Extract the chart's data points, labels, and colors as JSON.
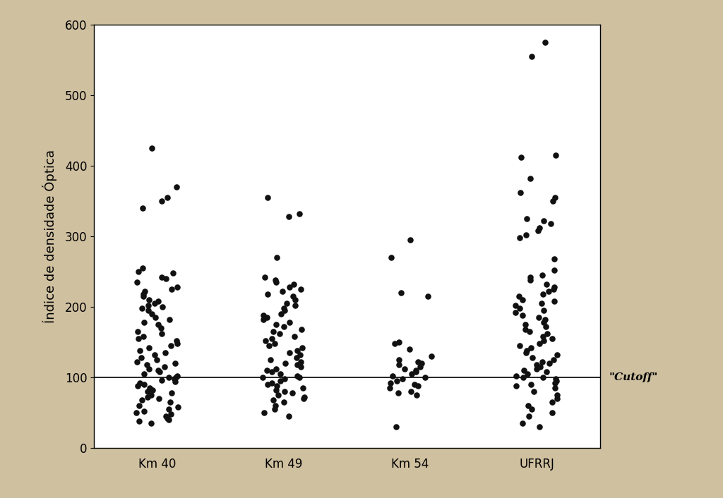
{
  "groups": [
    "Km 40",
    "Km 49",
    "Km 54",
    "UFRRJ"
  ],
  "group_positions": [
    1,
    2,
    3,
    4
  ],
  "cutoff": 100,
  "ylabel": "Índice de densidade Óptica",
  "cutoff_label": "\"Cutoff\"",
  "ylim": [
    0,
    600
  ],
  "yticks": [
    0,
    100,
    200,
    300,
    400,
    500,
    600
  ],
  "background_color": "#cfc0a0",
  "plot_bg_color": "#ffffff",
  "dot_color": "#111111",
  "dot_size": 38,
  "km40": [
    425,
    370,
    355,
    350,
    340,
    255,
    250,
    248,
    242,
    240,
    235,
    228,
    225,
    222,
    218,
    215,
    210,
    208,
    205,
    202,
    200,
    198,
    195,
    190,
    185,
    182,
    178,
    175,
    170,
    165,
    162,
    158,
    155,
    152,
    148,
    145,
    142,
    138,
    135,
    132,
    128,
    125,
    122,
    120,
    118,
    115,
    112,
    110,
    108,
    105,
    102,
    100,
    100,
    98,
    96,
    94,
    92,
    90,
    88,
    85,
    82,
    80,
    78,
    75,
    72,
    70,
    68,
    65,
    60,
    58,
    55,
    52,
    50,
    48,
    45,
    42,
    40,
    38,
    35
  ],
  "km49": [
    355,
    332,
    328,
    270,
    242,
    238,
    235,
    232,
    228,
    225,
    222,
    218,
    215,
    210,
    205,
    202,
    198,
    195,
    190,
    188,
    185,
    182,
    178,
    175,
    172,
    168,
    165,
    162,
    158,
    155,
    152,
    148,
    145,
    142,
    138,
    135,
    132,
    128,
    125,
    122,
    120,
    118,
    115,
    112,
    110,
    108,
    105,
    102,
    100,
    100,
    98,
    95,
    92,
    90,
    88,
    85,
    82,
    80,
    78,
    75,
    72,
    70,
    68,
    65,
    60,
    55,
    50,
    45
  ],
  "km54": [
    295,
    270,
    220,
    215,
    150,
    148,
    140,
    130,
    125,
    122,
    120,
    118,
    115,
    112,
    110,
    108,
    105,
    102,
    100,
    98,
    95,
    92,
    90,
    88,
    85,
    80,
    78,
    75,
    30
  ],
  "ufrrj": [
    575,
    555,
    415,
    412,
    382,
    362,
    355,
    350,
    325,
    322,
    318,
    312,
    308,
    302,
    298,
    268,
    252,
    245,
    242,
    238,
    232,
    228,
    225,
    222,
    218,
    215,
    210,
    208,
    205,
    202,
    198,
    195,
    192,
    188,
    185,
    182,
    178,
    175,
    172,
    168,
    165,
    162,
    158,
    155,
    152,
    148,
    145,
    142,
    138,
    135,
    132,
    128,
    125,
    122,
    120,
    118,
    115,
    112,
    110,
    108,
    105,
    102,
    100,
    100,
    98,
    95,
    92,
    90,
    88,
    85,
    80,
    75,
    70,
    65,
    60,
    55,
    50,
    45,
    35,
    30
  ]
}
